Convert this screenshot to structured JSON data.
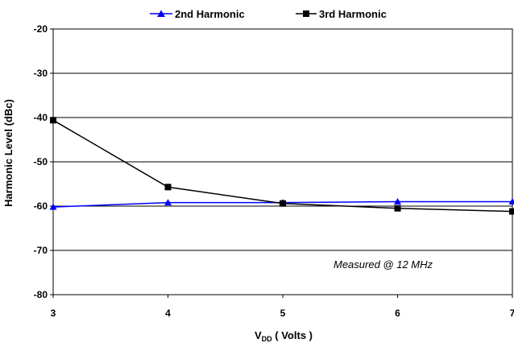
{
  "chart_data": {
    "type": "line",
    "xlabel_main": "V",
    "xlabel_sub": "DD",
    "xlabel_rest": " ( Volts )",
    "ylabel": "Harmonic Level (dBc)",
    "x_ticks": [
      "3",
      "4",
      "5",
      "6",
      "7"
    ],
    "y_ticks": [
      "-20",
      "-30",
      "-40",
      "-50",
      "-60",
      "-70",
      "-80"
    ],
    "xlim": [
      3,
      7
    ],
    "ylim": [
      -80,
      -20
    ],
    "grid": "horizontal",
    "legend_position": "top",
    "annotation": "Measured @ 12 MHz",
    "x": [
      3,
      4,
      5,
      6,
      7
    ],
    "series": [
      {
        "name": "2nd Harmonic",
        "color": "#0000ff",
        "marker": "triangle",
        "values": [
          -60.2,
          -59.2,
          -59.2,
          -59.0,
          -59.0
        ]
      },
      {
        "name": "3rd Harmonic",
        "color": "#000000",
        "marker": "square",
        "values": [
          -40.6,
          -55.7,
          -59.4,
          -60.5,
          -61.2
        ]
      }
    ]
  }
}
